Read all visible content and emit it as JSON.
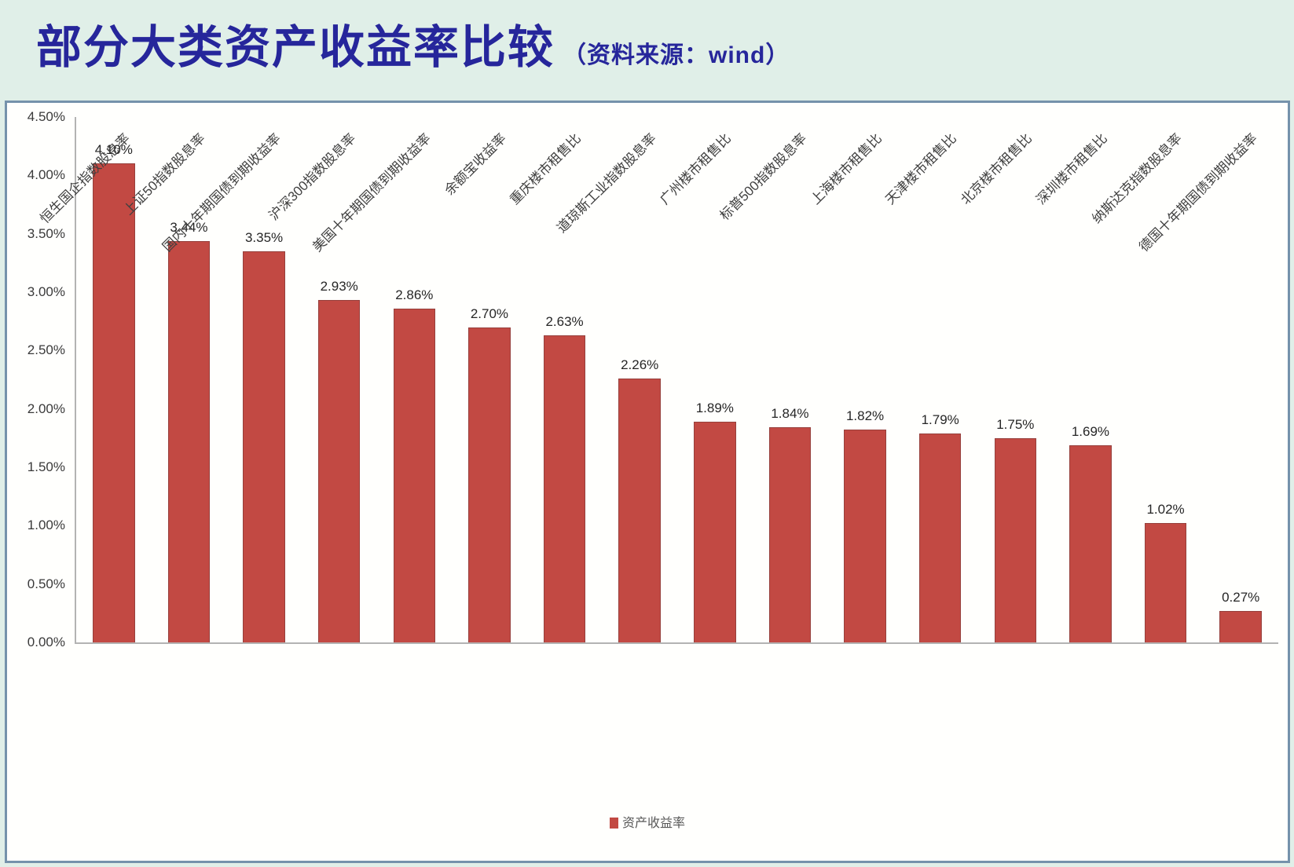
{
  "header": {
    "title": "部分大类资产收益率比较",
    "source_note": "（资料来源：wind）"
  },
  "chart_data": {
    "type": "bar",
    "title": "部分大类资产收益率比较",
    "source": "wind",
    "categories": [
      "恒生国企指数股息率",
      "上证50指数股息率",
      "国内十年期国债到期收益率",
      "沪深300指数股息率",
      "美国十年期国债到期收益率",
      "余额宝收益率",
      "重庆楼市租售比",
      "道琼斯工业指数股息率",
      "广州楼市租售比",
      "标普500指数股息率",
      "上海楼市租售比",
      "天津楼市租售比",
      "北京楼市租售比",
      "深圳楼市租售比",
      "纳斯达克指数股息率",
      "德国十年期国债到期收益率"
    ],
    "values": [
      4.1,
      3.44,
      3.35,
      2.93,
      2.86,
      2.7,
      2.63,
      2.26,
      1.89,
      1.84,
      1.82,
      1.79,
      1.75,
      1.69,
      1.02,
      0.27
    ],
    "value_labels": [
      "4.10%",
      "3.44%",
      "3.35%",
      "2.93%",
      "2.86%",
      "2.70%",
      "2.63%",
      "2.26%",
      "1.89%",
      "1.84%",
      "1.82%",
      "1.79%",
      "1.75%",
      "1.69%",
      "1.02%",
      "0.27%"
    ],
    "ylim": [
      0,
      4.5
    ],
    "y_ticks": [
      {
        "value": 4.5,
        "label": "4.50%"
      },
      {
        "value": 4.0,
        "label": "4.00%"
      },
      {
        "value": 3.5,
        "label": "3.50%"
      },
      {
        "value": 3.0,
        "label": "3.00%"
      },
      {
        "value": 2.5,
        "label": "2.50%"
      },
      {
        "value": 2.0,
        "label": "2.00%"
      },
      {
        "value": 1.5,
        "label": "1.50%"
      },
      {
        "value": 1.0,
        "label": "1.00%"
      },
      {
        "value": 0.5,
        "label": "0.50%"
      },
      {
        "value": 0.0,
        "label": "0.00%"
      }
    ],
    "grid": false,
    "legend_position": "bottom",
    "legend_label": "资产收益率",
    "bar_color": "#c24943"
  },
  "colors": {
    "title_text": "#26269b",
    "title_band_bg": "#e0efe8",
    "chart_bg": "#fffffd",
    "chart_border": "#7592ab",
    "bar_fill": "#c24943",
    "bar_border": "#96403c",
    "axis_line": "#b3b3b3"
  }
}
